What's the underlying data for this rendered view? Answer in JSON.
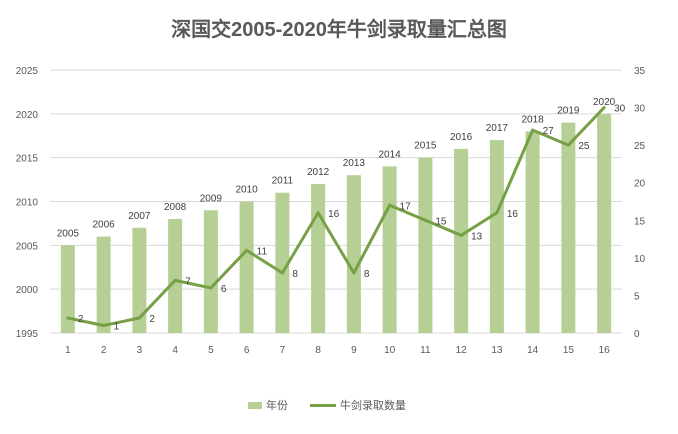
{
  "chart_data": {
    "type": "bar+line",
    "title": "深国交2005-2020年牛剑录取量汇总图",
    "categories": [
      "1",
      "2",
      "3",
      "4",
      "5",
      "6",
      "7",
      "8",
      "9",
      "10",
      "11",
      "12",
      "13",
      "14",
      "15",
      "16"
    ],
    "series": [
      {
        "name": "年份",
        "type": "bar",
        "axis": "left",
        "values": [
          2005,
          2006,
          2007,
          2008,
          2009,
          2010,
          2011,
          2012,
          2013,
          2014,
          2015,
          2016,
          2017,
          2018,
          2019,
          2020
        ],
        "color": "#b5cf95"
      },
      {
        "name": "牛剑录取数量",
        "type": "line",
        "axis": "right",
        "values": [
          2,
          1,
          2,
          7,
          6,
          11,
          8,
          16,
          8,
          17,
          15,
          13,
          16,
          27,
          25,
          30
        ],
        "color": "#77a046"
      }
    ],
    "left_axis": {
      "ylim": [
        1995,
        2025
      ],
      "ticks": [
        1995,
        2000,
        2005,
        2010,
        2015,
        2020,
        2025
      ]
    },
    "right_axis": {
      "ylim": [
        0,
        35
      ],
      "ticks": [
        0,
        5,
        10,
        15,
        20,
        25,
        30,
        35
      ]
    },
    "grid": true,
    "legend": "bottom",
    "data_labels": true
  }
}
